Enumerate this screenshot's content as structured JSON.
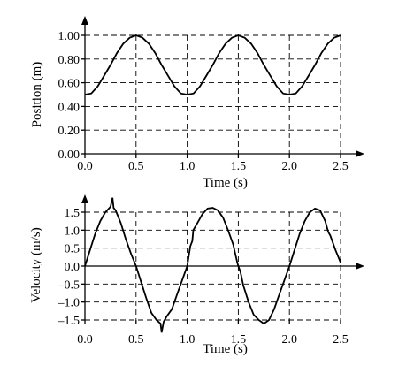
{
  "chart_data": [
    {
      "type": "line",
      "title": "",
      "xlabel": "Time (s)",
      "ylabel": "Position (m)",
      "xlim": [
        0,
        2.5
      ],
      "ylim": [
        0,
        1.0
      ],
      "xticks": [
        "0.0",
        "0.5",
        "1.0",
        "1.5",
        "2.0",
        "2.5"
      ],
      "yticks": [
        "0.00",
        "0.20",
        "0.40",
        "0.60",
        "0.80",
        "1.00"
      ],
      "grid": true,
      "series": [
        {
          "x": [
            0,
            0.0625,
            0.125,
            0.1875,
            0.25,
            0.3125,
            0.375,
            0.4375,
            0.5,
            0.5625,
            0.625,
            0.6875,
            0.75,
            0.8125,
            0.875,
            0.9375,
            1.0,
            1.0625,
            1.125,
            1.1875,
            1.25,
            1.3125,
            1.375,
            1.4375,
            1.5,
            1.5625,
            1.625,
            1.6875,
            1.75,
            1.8125,
            1.875,
            1.9375,
            2.0,
            2.0625,
            2.125,
            2.1875,
            2.25,
            2.3125,
            2.375,
            2.4375,
            2.5
          ],
          "y": [
            0.5,
            0.51,
            0.57,
            0.66,
            0.75,
            0.85,
            0.93,
            0.98,
            1.0,
            0.98,
            0.93,
            0.85,
            0.75,
            0.66,
            0.57,
            0.51,
            0.5,
            0.51,
            0.57,
            0.66,
            0.75,
            0.85,
            0.93,
            0.98,
            1.0,
            0.98,
            0.93,
            0.85,
            0.75,
            0.66,
            0.57,
            0.51,
            0.5,
            0.51,
            0.57,
            0.66,
            0.75,
            0.85,
            0.93,
            0.98,
            1.0
          ]
        }
      ]
    },
    {
      "type": "line",
      "title": "",
      "xlabel": "Time (s)",
      "ylabel": "Velocity (m/s)",
      "xlim": [
        0,
        2.5
      ],
      "ylim": [
        -1.5,
        1.5
      ],
      "xticks": [
        "0.0",
        "0.5",
        "1.0",
        "1.5",
        "2.0",
        "2.5"
      ],
      "yticks": [
        "1.5",
        "1.0",
        "0.5",
        "0.0",
        "–0.5",
        "–1.0",
        "–1.5"
      ],
      "grid": true,
      "series": [
        {
          "x": [
            0,
            0.05,
            0.1,
            0.15,
            0.2,
            0.25,
            0.27,
            0.28,
            0.3,
            0.35,
            0.4,
            0.45,
            0.5,
            0.55,
            0.6,
            0.65,
            0.7,
            0.74,
            0.75,
            0.77,
            0.8,
            0.85,
            0.9,
            0.95,
            1.0,
            1.03,
            1.05,
            1.06,
            1.1,
            1.15,
            1.2,
            1.25,
            1.3,
            1.35,
            1.4,
            1.45,
            1.47,
            1.49,
            1.5,
            1.52,
            1.55,
            1.6,
            1.65,
            1.7,
            1.75,
            1.8,
            1.85,
            1.9,
            1.95,
            2.0,
            2.05,
            2.1,
            2.15,
            2.2,
            2.25,
            2.3,
            2.35,
            2.38,
            2.4,
            2.45,
            2.5
          ],
          "y": [
            0.0,
            0.45,
            0.9,
            1.25,
            1.5,
            1.65,
            1.9,
            1.62,
            1.55,
            1.2,
            0.75,
            0.35,
            0.0,
            -0.45,
            -0.9,
            -1.3,
            -1.5,
            -1.6,
            -1.85,
            -1.55,
            -1.4,
            -1.2,
            -0.8,
            -0.4,
            0.0,
            0.55,
            0.7,
            1.0,
            1.2,
            1.45,
            1.6,
            1.62,
            1.55,
            1.35,
            1.0,
            0.6,
            0.35,
            0.1,
            0.0,
            -0.15,
            -0.55,
            -1.0,
            -1.35,
            -1.5,
            -1.6,
            -1.5,
            -1.2,
            -0.8,
            -0.4,
            0.0,
            0.45,
            0.9,
            1.25,
            1.5,
            1.6,
            1.55,
            1.25,
            0.95,
            0.85,
            0.45,
            0.1
          ]
        }
      ]
    }
  ]
}
